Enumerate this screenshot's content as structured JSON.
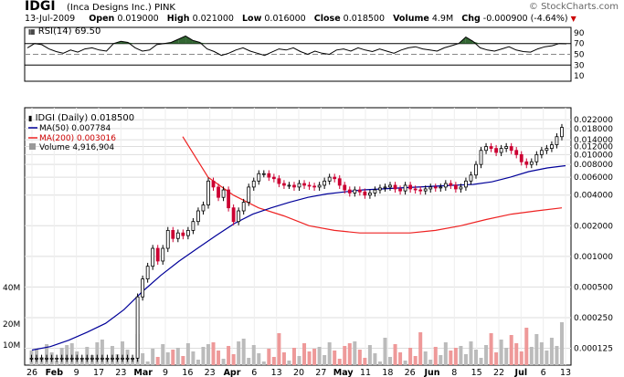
{
  "header": {
    "symbol": "IDGI",
    "company": "(Inca Designs Inc.)",
    "exchange": "PINK",
    "watermark": "© StockCharts.com",
    "date": "13-Jul-2009",
    "open_label": "Open",
    "open": "0.019000",
    "high_label": "High",
    "high": "0.021000",
    "low_label": "Low",
    "low": "0.016000",
    "close_label": "Close",
    "close": "0.018500",
    "volume_label": "Volume",
    "volume": "4.9M",
    "chg_label": "Chg",
    "chg": "-0.000900 (-4.64%)"
  },
  "rsi": {
    "label": "RSI(14) 69.50",
    "ticks": [
      "90",
      "70",
      "50",
      "30",
      "10"
    ]
  },
  "legend": {
    "main": "IDGI (Daily) 0.018500",
    "ma50": "MA(50) 0.007784",
    "ma200": "MA(200) 0.003016",
    "volume": "Volume 4,916,904"
  },
  "colors": {
    "up": "#000000",
    "down": "#cc0033",
    "ma50": "#000099",
    "ma200": "#ee2222",
    "rsi_fill": "#336633",
    "volume_up": "#bbbbbb",
    "volume_down": "#ee9999"
  },
  "chart_data": {
    "type": "candlestick",
    "title": "IDGI (Daily)",
    "y_scale": "log",
    "y_ticks": [
      "0.022000",
      "0.018000",
      "0.014000",
      "0.012000",
      "0.010000",
      "0.008000",
      "0.006000",
      "0.004000",
      "0.002000",
      "0.001000",
      "0.000500",
      "0.000250",
      "0.000125"
    ],
    "volume_ticks": [
      "40M",
      "20M",
      "10M"
    ],
    "x_labels": [
      "26",
      "Feb",
      "9",
      "17",
      "23",
      "Mar",
      "9",
      "16",
      "23",
      "Apr",
      "6",
      "13",
      "20",
      "27",
      "May",
      "11",
      "18",
      "26",
      "Jun",
      "8",
      "15",
      "22",
      "Jul",
      "6",
      "13"
    ],
    "x_labels_bold": [
      "Feb",
      "Mar",
      "Apr",
      "May",
      "Jun",
      "Jul"
    ],
    "series_close_approx": [
      0.0001,
      0.0001,
      0.0001,
      0.0001,
      0.0001,
      0.0001,
      0.0001,
      0.0001,
      0.0001,
      0.0001,
      0.0001,
      0.0001,
      0.0001,
      0.0001,
      0.0001,
      0.0001,
      0.0001,
      0.0001,
      0.0001,
      0.0001,
      0.0001,
      0.0004,
      0.0006,
      0.0008,
      0.0012,
      0.0009,
      0.0012,
      0.0018,
      0.0015,
      0.0017,
      0.0016,
      0.0018,
      0.0022,
      0.0028,
      0.0032,
      0.0055,
      0.0048,
      0.0038,
      0.0045,
      0.003,
      0.0022,
      0.0028,
      0.0034,
      0.0048,
      0.0055,
      0.0065,
      0.0065,
      0.006,
      0.0058,
      0.0052,
      0.005,
      0.005,
      0.0048,
      0.0052,
      0.005,
      0.0049,
      0.0048,
      0.005,
      0.0055,
      0.006,
      0.0058,
      0.005,
      0.0045,
      0.0042,
      0.0045,
      0.0043,
      0.004,
      0.0042,
      0.0045,
      0.0047,
      0.0048,
      0.005,
      0.0046,
      0.0044,
      0.005,
      0.0046,
      0.0045,
      0.0044,
      0.0046,
      0.0048,
      0.0047,
      0.0048,
      0.0052,
      0.005,
      0.0046,
      0.0048,
      0.0055,
      0.0063,
      0.008,
      0.011,
      0.012,
      0.0115,
      0.0105,
      0.0115,
      0.012,
      0.011,
      0.01,
      0.0085,
      0.008,
      0.0085,
      0.01,
      0.011,
      0.0115,
      0.0125,
      0.015,
      0.0185
    ],
    "ma50_approx": [
      0.00012,
      0.00013,
      0.00015,
      0.00018,
      0.00022,
      0.0003,
      0.00045,
      0.00065,
      0.0009,
      0.0012,
      0.0016,
      0.0021,
      0.0026,
      0.003,
      0.0034,
      0.0038,
      0.0041,
      0.0043,
      0.0045,
      0.0046,
      0.0047,
      0.0048,
      0.0049,
      0.005,
      0.0051,
      0.0054,
      0.006,
      0.0068,
      0.0074,
      0.00778
    ],
    "ma200_approx": [
      0.015,
      0.006,
      0.004,
      0.003,
      0.0025,
      0.002,
      0.0018,
      0.0017,
      0.0017,
      0.0017,
      0.0018,
      0.002,
      0.0023,
      0.0026,
      0.0028,
      0.003
    ],
    "rsi_approx": [
      62,
      70,
      68,
      60,
      55,
      52,
      58,
      54,
      60,
      62,
      58,
      56,
      70,
      74,
      72,
      62,
      56,
      58,
      68,
      70,
      72,
      78,
      84,
      76,
      72,
      60,
      55,
      48,
      52,
      58,
      62,
      56,
      52,
      48,
      54,
      60,
      58,
      62,
      55,
      50,
      56,
      52,
      50,
      58,
      60,
      56,
      62,
      58,
      55,
      60,
      56,
      52,
      58,
      62,
      64,
      60,
      58,
      56,
      62,
      66,
      70,
      82,
      74,
      62,
      58,
      56,
      60,
      64,
      58,
      55,
      54,
      60,
      64,
      66,
      70,
      69.5
    ]
  }
}
